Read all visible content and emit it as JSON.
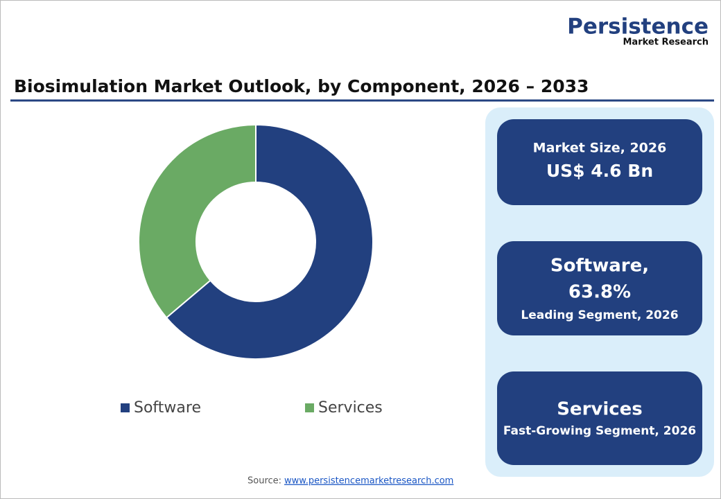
{
  "logo": {
    "name": "Persistence",
    "tagline": "Market Research"
  },
  "chart_data": {
    "type": "donut",
    "title": "Biosimulation Market Outlook, by Component, 2026 – 2033",
    "categories": [
      "Software",
      "Services"
    ],
    "values": [
      63.8,
      36.2
    ],
    "colors": [
      "#22407f",
      "#6aaa64"
    ]
  },
  "cards": [
    {
      "lines": [
        "Market Size, 2026",
        "US$ 4.6 Bn"
      ]
    },
    {
      "lines": [
        "Software,",
        "63.8%",
        "Leading Segment, 2026"
      ]
    },
    {
      "lines": [
        "Services",
        "Fast-Growing Segment, 2026"
      ]
    }
  ],
  "source": {
    "label": "Source:",
    "link": "www.persistencemarketresearch.com"
  }
}
